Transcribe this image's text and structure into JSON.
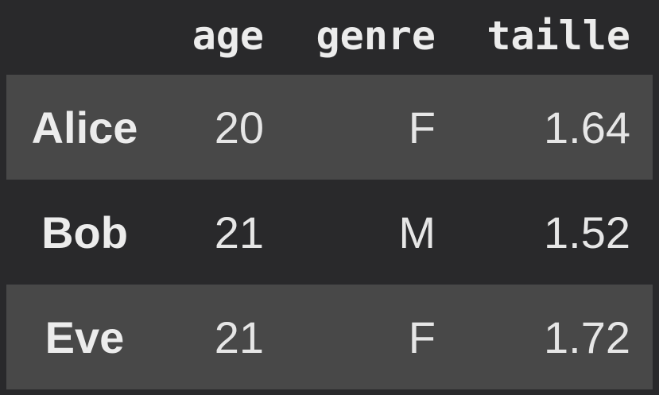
{
  "chart_data": {
    "type": "table",
    "title": "",
    "index_header": "",
    "columns": [
      "age",
      "genre",
      "taille"
    ],
    "index": [
      "Alice",
      "Bob",
      "Eve"
    ],
    "rows": [
      {
        "index": "Alice",
        "age": 20,
        "genre": "F",
        "taille": 1.64
      },
      {
        "index": "Bob",
        "age": 21,
        "genre": "M",
        "taille": 1.52
      },
      {
        "index": "Eve",
        "age": 21,
        "genre": "F",
        "taille": 1.72
      }
    ]
  },
  "colors": {
    "background": "#29292b",
    "row_stripe": "#484848",
    "header_text": "#ececec",
    "cell_text": "#e6e6e6"
  }
}
